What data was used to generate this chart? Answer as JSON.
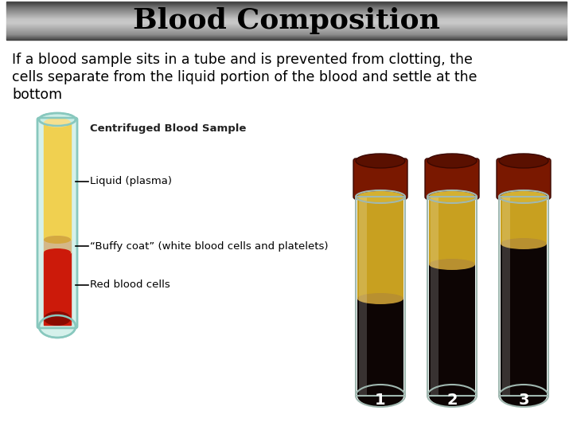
{
  "title": "Blood Composition",
  "subtitle_line1": "If a blood sample sits in a tube and is prevented from clotting, the",
  "subtitle_line2": "cells separate from the liquid portion of the blood and settle at the",
  "subtitle_line3": "bottom",
  "diagram_title": "Centrifuged Blood Sample",
  "label1": "Liquid (plasma)",
  "label2": "“Buffy coat” (white blood cells and platelets)",
  "label3": "Red blood cells",
  "bg_color": "#ffffff",
  "title_text_color": "#000000",
  "tube_outer_color": "#c8ede5",
  "tube_edge_color": "#88c8be",
  "plasma_color": "#f0d050",
  "plasma_top_color": "#f5e090",
  "buffy_color": "#d4b888",
  "rbc_color": "#cc1a0a",
  "rbc_dark_color": "#8a0a00",
  "photo_cap_color": "#7a1800",
  "photo_plasma_color": "#c8a020",
  "photo_plasma2_color": "#b89018",
  "photo_rbc_color": "#0d0504",
  "photo_tube_glass": "#e0ede8",
  "number_label_bg": "#555555",
  "number_label_color": "#ffffff"
}
